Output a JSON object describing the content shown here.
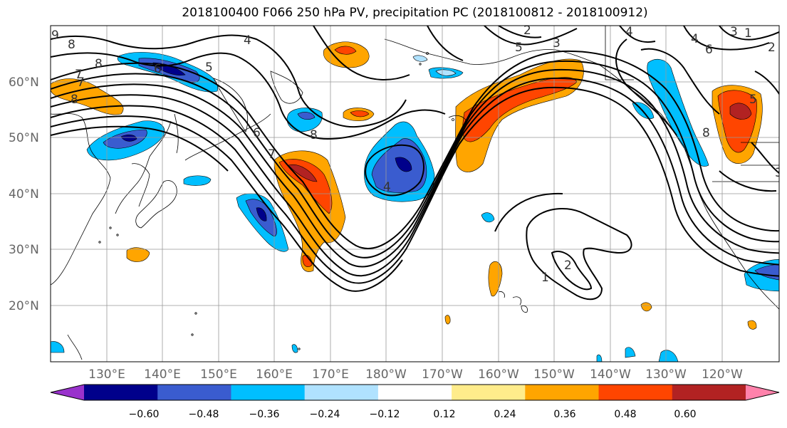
{
  "title": "2018100400 F066 250 hPa PV, precipitation PC (2018100812 - 2018100912)",
  "map": {
    "lat_labels": [
      "60°N",
      "50°N",
      "40°N",
      "30°N",
      "20°N"
    ],
    "lon_labels": [
      "130°E",
      "140°E",
      "150°E",
      "160°E",
      "170°E",
      "180°W",
      "170°W",
      "160°W",
      "150°W",
      "140°W",
      "130°W",
      "120°W"
    ],
    "contour_labels": [
      "9",
      "8",
      "7",
      "6",
      "5",
      "4",
      "3",
      "2",
      "8",
      "7",
      "6",
      "5",
      "4",
      "3",
      "8",
      "4",
      "3",
      "2",
      "1",
      "8",
      "7",
      "5",
      "2",
      "1",
      "4",
      "6",
      "8"
    ]
  },
  "colorbar": {
    "ticks": [
      "−0.60",
      "−0.48",
      "−0.36",
      "−0.24",
      "−0.12",
      "0.12",
      "0.24",
      "0.36",
      "0.48",
      "0.60"
    ],
    "colors": [
      "#9932cc",
      "#00008b",
      "#3a5ccf",
      "#00bfff",
      "#b0e2ff",
      "#ffffff",
      "#ffec8b",
      "#ffa500",
      "#ff4500",
      "#b22222",
      "#ff82ab"
    ]
  }
}
